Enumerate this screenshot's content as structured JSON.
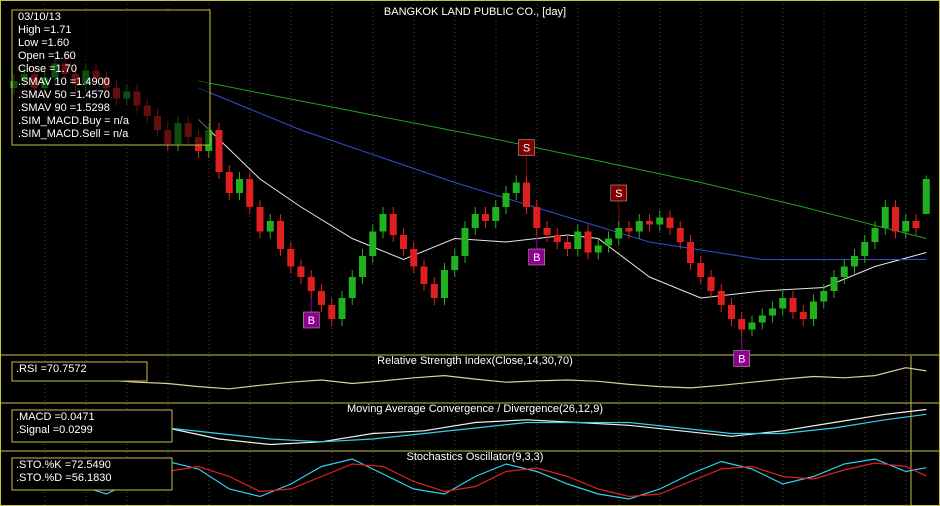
{
  "info": {
    "texts": [
      "03/10/13",
      "High =1.71",
      "Low =1.60",
      "Open =1.60",
      "Close =1.70",
      ".SMAV 10   =1.4900",
      ".SMAV 50   =1.4570",
      ".SMAV 90   =1.5298",
      ".SIM_MACD.Buy   = n/a",
      ".SIM_MACD.Sell   = n/a"
    ],
    "colors": [
      "#ffffff",
      "#ffffff",
      "#ffffff",
      "#ffffff",
      "#ffffff",
      "#ffffff",
      "#4060ff",
      "#20a020",
      "#a020c0",
      "#a02020"
    ]
  },
  "chart_data": [
    {
      "type": "candlestick",
      "title": "BANGKOK LAND PUBLIC CO., [day]",
      "ylim": [
        1.2,
        2.2
      ],
      "up_color": "#20b020",
      "down_color": "#e02020",
      "open": [
        1.96,
        1.98,
        2.0,
        1.96,
        1.99,
        2.03,
        2.0,
        1.97,
        2.01,
        1.99,
        1.96,
        1.93,
        1.95,
        1.91,
        1.88,
        1.84,
        1.8,
        1.86,
        1.82,
        1.78,
        1.84,
        1.72,
        1.66,
        1.7,
        1.62,
        1.55,
        1.58,
        1.5,
        1.45,
        1.42,
        1.38,
        1.34,
        1.3,
        1.36,
        1.42,
        1.48,
        1.55,
        1.6,
        1.54,
        1.5,
        1.45,
        1.4,
        1.36,
        1.44,
        1.48,
        1.56,
        1.6,
        1.58,
        1.62,
        1.66,
        1.69,
        1.62,
        1.56,
        1.54,
        1.52,
        1.5,
        1.55,
        1.49,
        1.51,
        1.53,
        1.56,
        1.55,
        1.58,
        1.57,
        1.59,
        1.56,
        1.52,
        1.46,
        1.42,
        1.38,
        1.34,
        1.3,
        1.27,
        1.29,
        1.31,
        1.33,
        1.36,
        1.32,
        1.3,
        1.35,
        1.38,
        1.42,
        1.45,
        1.48,
        1.52,
        1.56,
        1.62,
        1.55,
        1.58,
        1.6
      ],
      "high": [
        2.0,
        2.02,
        2.02,
        2.01,
        2.05,
        2.05,
        2.02,
        2.03,
        2.03,
        2.01,
        1.98,
        1.97,
        1.97,
        1.93,
        1.9,
        1.86,
        1.88,
        1.88,
        1.84,
        1.86,
        1.86,
        1.74,
        1.72,
        1.72,
        1.64,
        1.6,
        1.6,
        1.52,
        1.47,
        1.44,
        1.4,
        1.36,
        1.38,
        1.44,
        1.5,
        1.57,
        1.62,
        1.62,
        1.56,
        1.52,
        1.47,
        1.42,
        1.46,
        1.5,
        1.58,
        1.62,
        1.62,
        1.64,
        1.68,
        1.71,
        1.71,
        1.64,
        1.58,
        1.56,
        1.54,
        1.57,
        1.57,
        1.53,
        1.55,
        1.58,
        1.58,
        1.6,
        1.6,
        1.61,
        1.61,
        1.58,
        1.54,
        1.48,
        1.44,
        1.4,
        1.36,
        1.32,
        1.31,
        1.33,
        1.35,
        1.38,
        1.38,
        1.34,
        1.37,
        1.4,
        1.44,
        1.47,
        1.5,
        1.54,
        1.58,
        1.64,
        1.64,
        1.6,
        1.6,
        1.71
      ],
      "low": [
        1.94,
        1.96,
        1.94,
        1.94,
        1.97,
        1.98,
        1.95,
        1.95,
        1.97,
        1.94,
        1.91,
        1.91,
        1.89,
        1.86,
        1.82,
        1.78,
        1.78,
        1.8,
        1.76,
        1.76,
        1.7,
        1.64,
        1.64,
        1.6,
        1.53,
        1.53,
        1.48,
        1.43,
        1.4,
        1.36,
        1.32,
        1.28,
        1.28,
        1.34,
        1.4,
        1.46,
        1.53,
        1.52,
        1.48,
        1.43,
        1.38,
        1.34,
        1.34,
        1.42,
        1.46,
        1.54,
        1.56,
        1.56,
        1.6,
        1.64,
        1.6,
        1.54,
        1.52,
        1.5,
        1.48,
        1.48,
        1.47,
        1.47,
        1.49,
        1.51,
        1.53,
        1.53,
        1.55,
        1.55,
        1.54,
        1.5,
        1.44,
        1.4,
        1.36,
        1.32,
        1.28,
        1.25,
        1.25,
        1.27,
        1.29,
        1.31,
        1.3,
        1.28,
        1.28,
        1.33,
        1.36,
        1.4,
        1.43,
        1.46,
        1.5,
        1.54,
        1.53,
        1.53,
        1.54,
        1.6
      ],
      "close": [
        1.98,
        2.0,
        1.96,
        1.99,
        2.03,
        2.0,
        1.97,
        2.01,
        1.99,
        1.96,
        1.93,
        1.95,
        1.91,
        1.88,
        1.84,
        1.8,
        1.86,
        1.82,
        1.78,
        1.84,
        1.72,
        1.66,
        1.7,
        1.62,
        1.55,
        1.58,
        1.5,
        1.45,
        1.42,
        1.38,
        1.34,
        1.3,
        1.36,
        1.42,
        1.48,
        1.55,
        1.6,
        1.54,
        1.5,
        1.45,
        1.4,
        1.36,
        1.44,
        1.48,
        1.56,
        1.6,
        1.58,
        1.62,
        1.66,
        1.69,
        1.62,
        1.56,
        1.54,
        1.52,
        1.5,
        1.55,
        1.49,
        1.51,
        1.53,
        1.56,
        1.55,
        1.58,
        1.57,
        1.59,
        1.56,
        1.52,
        1.46,
        1.42,
        1.38,
        1.34,
        1.3,
        1.27,
        1.29,
        1.31,
        1.33,
        1.36,
        1.32,
        1.3,
        1.35,
        1.38,
        1.42,
        1.45,
        1.48,
        1.52,
        1.56,
        1.62,
        1.55,
        1.58,
        1.56,
        1.7
      ],
      "overlays": [
        {
          "color": "#e8e8e8",
          "x": [
            18,
            24,
            28,
            33,
            38,
            43,
            48,
            54,
            57,
            62,
            67,
            73,
            79,
            84,
            89
          ],
          "values": [
            1.87,
            1.7,
            1.62,
            1.53,
            1.47,
            1.53,
            1.52,
            1.54,
            1.53,
            1.42,
            1.36,
            1.38,
            1.39,
            1.45,
            1.49
          ]
        },
        {
          "color": "#3050d0",
          "x": [
            18,
            28,
            43,
            53,
            62,
            73,
            89
          ],
          "values": [
            1.96,
            1.84,
            1.69,
            1.6,
            1.52,
            1.47,
            1.47
          ]
        },
        {
          "color": "#20a020",
          "x": [
            18,
            46,
            67,
            77,
            89
          ],
          "values": [
            1.98,
            1.82,
            1.69,
            1.62,
            1.53
          ]
        }
      ],
      "signals": [
        {
          "label": "B",
          "index": 29,
          "color": "#900090"
        },
        {
          "label": "S",
          "index": 50,
          "color": "#800000"
        },
        {
          "label": "B",
          "index": 51,
          "color": "#900090"
        },
        {
          "label": "S",
          "index": 59,
          "color": "#800000"
        },
        {
          "label": "B",
          "index": 71,
          "color": "#900090"
        }
      ]
    },
    {
      "type": "line",
      "title": "Relative Strength Index(Close,14,30,70)",
      "ylim": [
        0,
        100
      ],
      "series": [
        {
          "name": ".RSI   =70.7572",
          "color": "#d8d0a0",
          "x": [
            0,
            3,
            6,
            9,
            12,
            15,
            18,
            21,
            24,
            27,
            30,
            33,
            36,
            39,
            42,
            45,
            48,
            51,
            54,
            57,
            60,
            63,
            66,
            69,
            72,
            75,
            78,
            81,
            84,
            87,
            89
          ],
          "values": [
            55,
            52,
            48,
            50,
            45,
            42,
            35,
            30,
            38,
            45,
            50,
            42,
            48,
            55,
            60,
            52,
            45,
            48,
            50,
            47,
            40,
            35,
            32,
            38,
            45,
            52,
            58,
            55,
            60,
            78,
            70.7572
          ]
        }
      ]
    },
    {
      "type": "line",
      "title": "Moving Average Convergence / Divergence(26,12,9)",
      "ylim": [
        -0.1,
        0.06
      ],
      "series": [
        {
          "name": ".MACD   =0.0471",
          "color": "#f0f0f0",
          "x": [
            15,
            20,
            25,
            30,
            35,
            40,
            45,
            50,
            55,
            60,
            65,
            70,
            75,
            80,
            85,
            89
          ],
          "values": [
            -0.02,
            -0.06,
            -0.08,
            -0.07,
            -0.04,
            -0.03,
            0.0,
            0.01,
            0.0,
            -0.01,
            -0.03,
            -0.05,
            -0.03,
            0.0,
            0.03,
            0.0471
          ]
        },
        {
          "name": ".Signal   =0.0299",
          "color": "#30d0f0",
          "x": [
            15,
            20,
            25,
            30,
            35,
            40,
            45,
            50,
            55,
            60,
            65,
            70,
            75,
            80,
            85,
            89
          ],
          "values": [
            -0.02,
            -0.04,
            -0.06,
            -0.07,
            -0.06,
            -0.04,
            -0.02,
            0.0,
            0.0,
            0.0,
            -0.02,
            -0.04,
            -0.04,
            -0.02,
            0.01,
            0.0299
          ]
        }
      ]
    },
    {
      "type": "line",
      "title": "Stochastics Oscillator(9,3,3)",
      "ylim": [
        0,
        100
      ],
      "series": [
        {
          "name": ".STO.%K   =72.5490",
          "color": "#30d0f0",
          "x": [
            0,
            3,
            6,
            9,
            12,
            15,
            18,
            21,
            24,
            27,
            30,
            33,
            36,
            39,
            42,
            45,
            48,
            51,
            54,
            57,
            60,
            63,
            66,
            69,
            72,
            75,
            78,
            81,
            84,
            87,
            89
          ],
          "values": [
            60,
            80,
            40,
            20,
            50,
            85,
            70,
            30,
            15,
            40,
            75,
            90,
            60,
            30,
            20,
            55,
            80,
            65,
            40,
            20,
            10,
            30,
            60,
            85,
            70,
            40,
            55,
            80,
            90,
            65,
            72.549
          ]
        },
        {
          "name": ".STO.%D   =56.1830",
          "color": "#e02020",
          "x": [
            0,
            3,
            6,
            9,
            12,
            15,
            18,
            21,
            24,
            27,
            30,
            33,
            36,
            39,
            42,
            45,
            48,
            51,
            54,
            57,
            60,
            63,
            66,
            69,
            72,
            75,
            78,
            81,
            84,
            87,
            89
          ],
          "values": [
            55,
            70,
            60,
            35,
            35,
            65,
            75,
            55,
            25,
            30,
            55,
            80,
            75,
            45,
            25,
            35,
            65,
            72,
            55,
            30,
            15,
            20,
            45,
            70,
            75,
            55,
            50,
            68,
            82,
            75,
            56.183
          ]
        }
      ]
    }
  ]
}
